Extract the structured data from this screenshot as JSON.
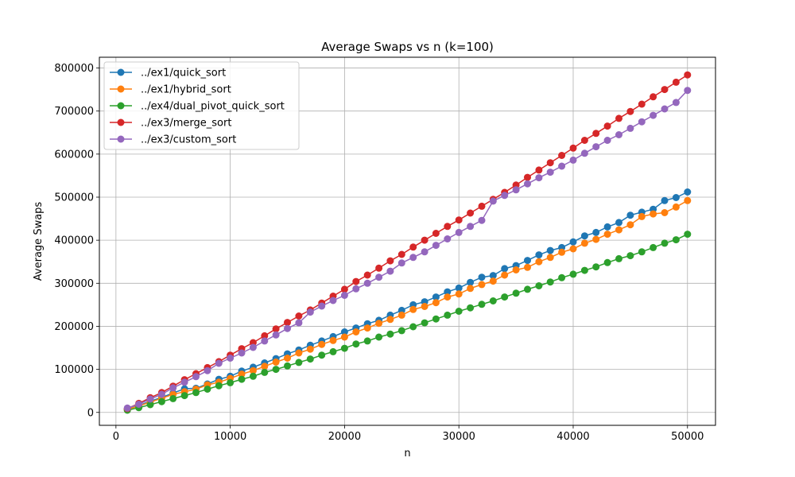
{
  "chart_data": {
    "type": "line",
    "title": "Average Swaps vs n (k=100)",
    "xlabel": "n",
    "ylabel": "Average Swaps",
    "xlim": [
      -1450,
      52450
    ],
    "ylim": [
      -30000,
      825000
    ],
    "xticks": [
      0,
      10000,
      20000,
      30000,
      40000,
      50000
    ],
    "xtick_labels": [
      "0",
      "10000",
      "20000",
      "30000",
      "40000",
      "50000"
    ],
    "yticks": [
      0,
      100000,
      200000,
      300000,
      400000,
      500000,
      600000,
      700000,
      800000
    ],
    "ytick_labels": [
      "0",
      "100000",
      "200000",
      "300000",
      "400000",
      "500000",
      "600000",
      "700000",
      "800000"
    ],
    "grid": true,
    "legend_position": "top-left",
    "x": [
      1000,
      2000,
      3000,
      4000,
      5000,
      6000,
      7000,
      8000,
      9000,
      10000,
      11000,
      12000,
      13000,
      14000,
      15000,
      16000,
      17000,
      18000,
      19000,
      20000,
      21000,
      22000,
      23000,
      24000,
      25000,
      26000,
      27000,
      28000,
      29000,
      30000,
      31000,
      32000,
      33000,
      34000,
      35000,
      36000,
      37000,
      38000,
      39000,
      40000,
      41000,
      42000,
      43000,
      44000,
      45000,
      46000,
      47000,
      48000,
      49000,
      50000
    ],
    "series": [
      {
        "name": "../ex1/quick_sort",
        "color": "#1f77b4",
        "values": [
          7000,
          16000,
          26000,
          35000,
          45000,
          55000,
          56000,
          66000,
          77000,
          84000,
          96000,
          105000,
          115000,
          125000,
          136000,
          145000,
          156000,
          166000,
          176000,
          187000,
          196000,
          206000,
          214000,
          226000,
          237000,
          250000,
          257000,
          268000,
          280000,
          289000,
          302000,
          314000,
          318000,
          334000,
          341000,
          353000,
          366000,
          376000,
          383000,
          396000,
          410000,
          418000,
          431000,
          441000,
          458000,
          465000,
          472000,
          492000,
          499000,
          512000
        ]
      },
      {
        "name": "../ex1/hybrid_sort",
        "color": "#ff7f0e",
        "values": [
          7000,
          15000,
          24000,
          33000,
          42000,
          48000,
          54000,
          64000,
          70000,
          79000,
          89000,
          97000,
          107000,
          117000,
          126000,
          138000,
          147000,
          158000,
          167000,
          175000,
          187000,
          196000,
          207000,
          216000,
          226000,
          239000,
          246000,
          255000,
          268000,
          275000,
          288000,
          297000,
          305000,
          319000,
          331000,
          337000,
          350000,
          360000,
          372000,
          380000,
          393000,
          402000,
          414000,
          424000,
          436000,
          455000,
          461000,
          464000,
          477000,
          492000
        ]
      },
      {
        "name": "../ex4/dual_pivot_quick_sort",
        "color": "#2ca02c",
        "values": [
          5000,
          11000,
          18000,
          25000,
          32000,
          39000,
          46000,
          54000,
          62000,
          69000,
          77000,
          84000,
          93000,
          100000,
          108000,
          116000,
          124000,
          133000,
          141000,
          149000,
          159000,
          166000,
          175000,
          182000,
          190000,
          199000,
          208000,
          217000,
          226000,
          235000,
          243000,
          251000,
          259000,
          268000,
          277000,
          286000,
          294000,
          303000,
          313000,
          321000,
          330000,
          338000,
          348000,
          357000,
          364000,
          373000,
          383000,
          393000,
          401000,
          414000
        ]
      },
      {
        "name": "../ex3/merge_sort",
        "color": "#d62728",
        "values": [
          9000,
          21000,
          34000,
          46000,
          61000,
          76000,
          90000,
          104000,
          118000,
          133000,
          148000,
          162000,
          178000,
          194000,
          209000,
          224000,
          238000,
          254000,
          270000,
          286000,
          304000,
          319000,
          335000,
          352000,
          367000,
          384000,
          400000,
          416000,
          432000,
          447000,
          463000,
          479000,
          495000,
          511000,
          528000,
          546000,
          563000,
          580000,
          597000,
          614000,
          632000,
          648000,
          665000,
          683000,
          699000,
          716000,
          733000,
          750000,
          767000,
          784000
        ]
      },
      {
        "name": "../ex3/custom_sort",
        "color": "#9467bd",
        "values": [
          10000,
          19000,
          31000,
          42000,
          57000,
          70000,
          83000,
          97000,
          114000,
          126000,
          138000,
          151000,
          166000,
          180000,
          195000,
          208000,
          233000,
          247000,
          260000,
          272000,
          287000,
          300000,
          314000,
          328000,
          347000,
          360000,
          373000,
          388000,
          403000,
          418000,
          432000,
          446000,
          491000,
          504000,
          517000,
          531000,
          545000,
          558000,
          572000,
          586000,
          602000,
          617000,
          632000,
          645000,
          660000,
          675000,
          690000,
          705000,
          720000,
          748000
        ]
      }
    ]
  }
}
